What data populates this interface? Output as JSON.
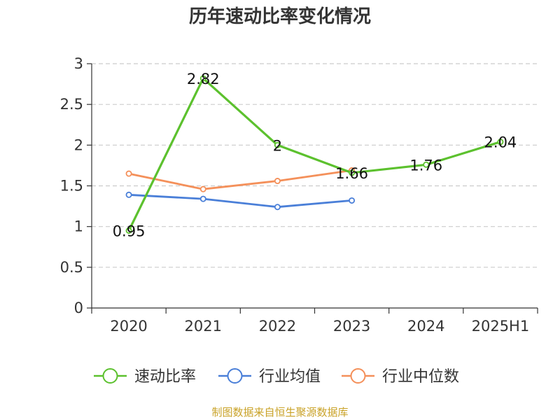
{
  "chart_data": {
    "type": "line",
    "title": "历年速动比率变化情况",
    "categories": [
      "2020",
      "2021",
      "2022",
      "2023",
      "2024",
      "2025H1"
    ],
    "y_ticks": [
      "0",
      "0.5",
      "1",
      "1.5",
      "2",
      "2.5",
      "3"
    ],
    "ylim": [
      0,
      3
    ],
    "grid": true,
    "legend_position": "bottom",
    "series": [
      {
        "name": "速动比率",
        "color": "#5cc12e",
        "values": [
          0.95,
          2.82,
          2.0,
          1.66,
          1.76,
          2.04
        ],
        "labels": [
          "0.95",
          "2.82",
          "2",
          "1.66",
          "1.76",
          "2.04"
        ]
      },
      {
        "name": "行业均值",
        "color": "#4a7fd8",
        "values": [
          1.39,
          1.34,
          1.24,
          1.32,
          null,
          null
        ]
      },
      {
        "name": "行业中位数",
        "color": "#f4905a",
        "values": [
          1.65,
          1.46,
          1.56,
          1.69,
          null,
          null
        ]
      }
    ]
  },
  "source": "制图数据来自恒生聚源数据库"
}
